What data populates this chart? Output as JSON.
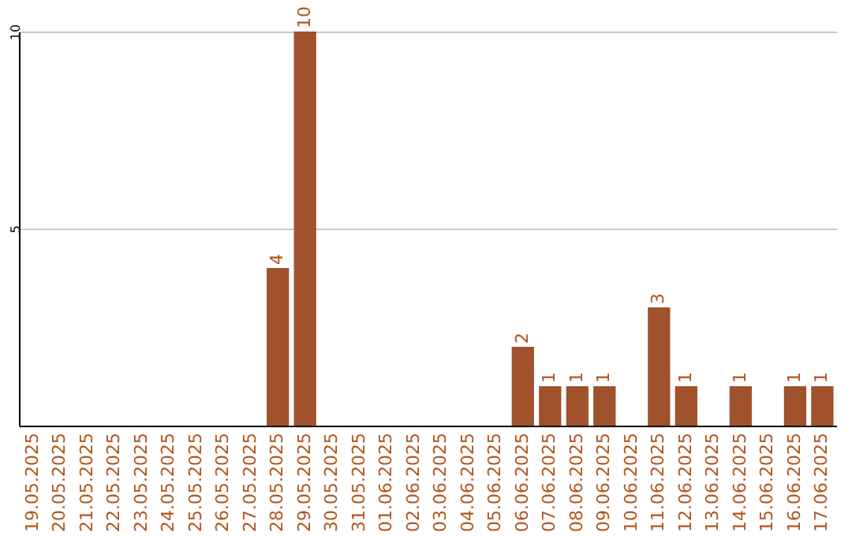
{
  "chart_data": {
    "type": "bar",
    "categories": [
      "19.05.2025",
      "20.05.2025",
      "21.05.2025",
      "22.05.2025",
      "23.05.2025",
      "24.05.2025",
      "25.05.2025",
      "26.05.2025",
      "27.05.2025",
      "28.05.2025",
      "29.05.2025",
      "30.05.2025",
      "31.05.2025",
      "01.06.2025",
      "02.06.2025",
      "03.06.2025",
      "04.06.2025",
      "05.06.2025",
      "06.06.2025",
      "07.06.2025",
      "08.06.2025",
      "09.06.2025",
      "10.06.2025",
      "11.06.2025",
      "12.06.2025",
      "13.06.2025",
      "14.06.2025",
      "15.06.2025",
      "16.06.2025",
      "17.06.2025"
    ],
    "values": [
      0,
      0,
      0,
      0,
      0,
      0,
      0,
      0,
      0,
      4,
      10,
      0,
      0,
      0,
      0,
      0,
      0,
      0,
      2,
      1,
      1,
      1,
      0,
      3,
      1,
      0,
      1,
      0,
      1,
      1
    ],
    "value_labels": [
      null,
      null,
      null,
      null,
      null,
      null,
      null,
      null,
      null,
      "4",
      "10",
      null,
      null,
      null,
      null,
      null,
      null,
      null,
      "2",
      "1",
      "1",
      "1",
      null,
      "3",
      "1",
      null,
      "1",
      null,
      "1",
      "1"
    ],
    "color": "#a0522d",
    "ylim": [
      0,
      10
    ],
    "yticks": [
      5,
      10
    ],
    "grid": "y"
  }
}
